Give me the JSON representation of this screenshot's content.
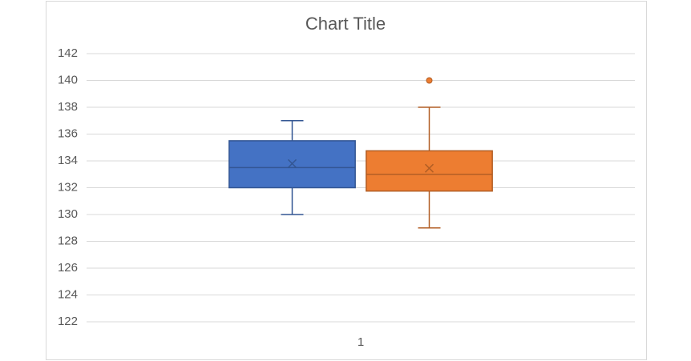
{
  "chart_data": {
    "type": "box",
    "title": "Chart Title",
    "categories": [
      "1"
    ],
    "ylim": [
      122,
      142
    ],
    "yticks": [
      122,
      124,
      126,
      128,
      130,
      132,
      134,
      136,
      138,
      140,
      142
    ],
    "grid": true,
    "series": [
      {
        "color": "#4472c4",
        "whisker_low": 130,
        "q1": 132,
        "median": 133.5,
        "q3": 135.5,
        "whisker_high": 137,
        "mean": 133.8,
        "outliers": []
      },
      {
        "color": "#ed7d31",
        "whisker_low": 129,
        "q1": 131.75,
        "median": 133,
        "q3": 134.75,
        "whisker_high": 138,
        "mean": 133.45,
        "outliers": [
          140
        ]
      }
    ]
  }
}
